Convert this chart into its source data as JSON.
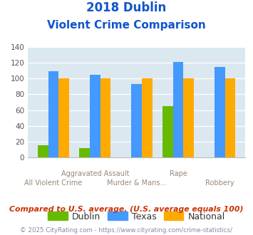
{
  "title_line1": "2018 Dublin",
  "title_line2": "Violent Crime Comparison",
  "dublin": [
    15,
    12,
    0,
    65,
    0
  ],
  "texas": [
    109,
    105,
    93,
    121,
    115
  ],
  "national": [
    100,
    100,
    100,
    100,
    100
  ],
  "dublin_color": "#66bb00",
  "texas_color": "#4499ff",
  "national_color": "#ffaa00",
  "bg_color": "#dce8f0",
  "ylim": [
    0,
    140
  ],
  "yticks": [
    0,
    20,
    40,
    60,
    80,
    100,
    120,
    140
  ],
  "title_color": "#1155cc",
  "top_labels": [
    "",
    "Aggravated Assault",
    "",
    "Rape",
    ""
  ],
  "bottom_labels": [
    "All Violent Crime",
    "",
    "Murder & Mans...",
    "",
    "Robbery"
  ],
  "footer_text": "Compared to U.S. average. (U.S. average equals 100)",
  "footer_color": "#cc3300",
  "copyright_text": "© 2025 CityRating.com - https://www.cityrating.com/crime-statistics/",
  "copyright_color": "#8888aa",
  "bar_width": 0.25,
  "legend_labels": [
    "Dublin",
    "Texas",
    "National"
  ]
}
